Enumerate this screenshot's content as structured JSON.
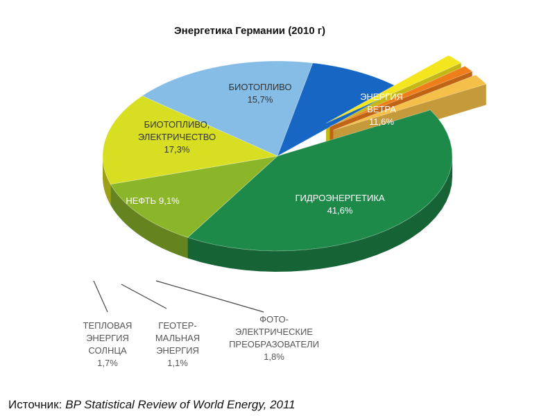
{
  "chart_data": {
    "type": "pie",
    "title": "Энергетика Германии (2010 г)",
    "source_label": "Источник:",
    "source": "BP Statistical Review of World Energy, 2011",
    "categories": [
      "ГИДРОЭНЕРГЕТИКА",
      "ЭНЕРГИЯ\nВЕТРА",
      "БИОТОПЛИВО",
      "БИОТОПЛИВО,\nЭЛЕКТРИЧЕСТВО",
      "НЕФТЬ",
      "ТЕПЛОВАЯ\nЭНЕРГИЯ\nСОЛНЦА",
      "ГЕОТЕР-\nМАЛЬНАЯ\nЭНЕРГИЯ",
      "ФОТО-\nЭЛЕКТРИЧЕСКИЕ\nПРЕОБРАЗОВАТЕЛИ"
    ],
    "values": [
      41.6,
      11.6,
      15.7,
      17.3,
      9.1,
      1.7,
      1.1,
      1.8
    ],
    "value_labels": [
      "41,6%",
      "11,6%",
      "15,7%",
      "17,3%",
      "9,1%",
      "1,7%",
      "1,1%",
      "1,8%"
    ],
    "colors": [
      "#1e8a4a",
      "#8cb62a",
      "#d8de22",
      "#85bde6",
      "#1766c4",
      "#f4e61e",
      "#ef7d1a",
      "#f5c04a"
    ],
    "explode": [
      false,
      false,
      false,
      false,
      false,
      true,
      true,
      true
    ]
  }
}
